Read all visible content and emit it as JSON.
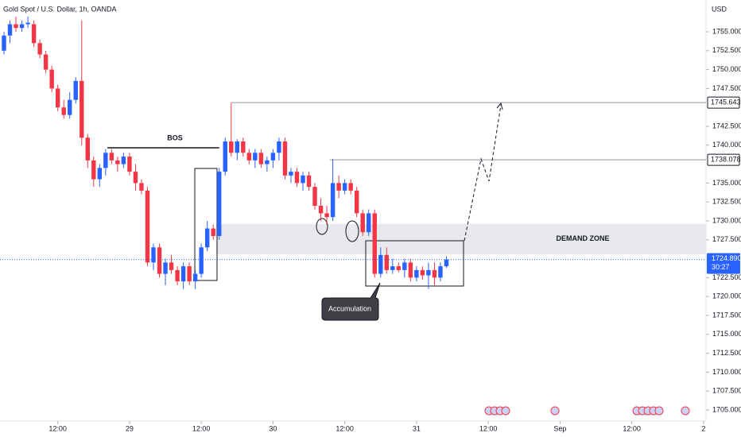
{
  "chart_data": {
    "type": "candlestick",
    "title": "Gold Spot / U.S. Dollar, 1h, OANDA",
    "currency": "USD",
    "up_color": "#2962ff",
    "down_color": "#f23645",
    "open": [
      1752.5,
      1754.5,
      1756,
      1755.5,
      1756,
      1756,
      1753.5,
      1752,
      1750,
      1747.5,
      1745,
      1744,
      1746,
      1748.5,
      1741,
      1738,
      1735.5,
      1737,
      1739,
      1738,
      1737.5,
      1738.5,
      1736.5,
      1735,
      1734,
      1724.5,
      1726.5,
      1723,
      1724.5,
      1723.5,
      1722,
      1724,
      1722,
      1723,
      1726.5,
      1729,
      1728,
      1736.5,
      1740.5,
      1739,
      1740.5,
      1739,
      1738,
      1739,
      1737.5,
      1738,
      1739,
      1740.5,
      1736,
      1736.5,
      1735,
      1736,
      1734.5,
      1732,
      1731,
      1730.5,
      1735,
      1734,
      1735,
      1734,
      1731,
      1728.5,
      1731,
      1723,
      1725.5,
      1723.5,
      1724,
      1723.5,
      1724.5,
      1722.5,
      1723.5,
      1722.8,
      1723.5,
      1722.5,
      1724
    ],
    "high": [
      1755,
      1756.5,
      1757,
      1756.5,
      1757,
      1756.5,
      1754,
      1752.5,
      1750.5,
      1748,
      1746,
      1747,
      1749,
      1756.5,
      1741.5,
      1738.5,
      1737.5,
      1739.5,
      1739.5,
      1738.5,
      1739,
      1739,
      1737.5,
      1735.5,
      1734.5,
      1727,
      1727,
      1725,
      1725.5,
      1724,
      1724.5,
      1724.5,
      1723.5,
      1727,
      1730,
      1729.5,
      1737,
      1741,
      1745.6,
      1740.8,
      1741,
      1739.5,
      1739.5,
      1739.5,
      1738.5,
      1739.5,
      1741,
      1741,
      1737,
      1737,
      1736.5,
      1736.5,
      1735,
      1733,
      1732,
      1738.2,
      1736,
      1735.5,
      1735.5,
      1734.5,
      1731.5,
      1731.5,
      1731.5,
      1726.5,
      1726.5,
      1725,
      1724.5,
      1725,
      1725,
      1724,
      1724,
      1724.5,
      1724.5,
      1724.5,
      1725.3
    ],
    "low": [
      1752,
      1753.5,
      1755,
      1755,
      1755.5,
      1753,
      1751.5,
      1749.5,
      1747,
      1744.5,
      1743.5,
      1743.5,
      1745.5,
      1740,
      1737,
      1734.5,
      1734.5,
      1736,
      1737.5,
      1736.5,
      1737,
      1736,
      1734,
      1733.5,
      1724,
      1723.5,
      1722.5,
      1721.5,
      1723,
      1721.5,
      1721,
      1721.5,
      1721,
      1722.5,
      1726,
      1727.5,
      1727.5,
      1736,
      1738.5,
      1738,
      1738.5,
      1737.5,
      1737,
      1737,
      1736.5,
      1737,
      1738,
      1735.5,
      1735,
      1734.5,
      1734,
      1734,
      1731.5,
      1730,
      1729.5,
      1730,
      1733,
      1733.5,
      1733.5,
      1730.5,
      1728,
      1728,
      1722.5,
      1722.5,
      1723,
      1723,
      1723.2,
      1722.5,
      1722,
      1722,
      1722.2,
      1721,
      1721.5,
      1722,
      1723.8
    ],
    "close": [
      1754.5,
      1756,
      1755.5,
      1756,
      1756.2,
      1753.5,
      1752,
      1750,
      1747.5,
      1745,
      1744,
      1746,
      1748.5,
      1741,
      1738,
      1735.5,
      1737,
      1739,
      1738,
      1737.5,
      1738.5,
      1736.5,
      1735,
      1734,
      1724.5,
      1726.5,
      1723,
      1724.5,
      1723.5,
      1722,
      1724,
      1722,
      1723,
      1726.5,
      1729,
      1728,
      1736.5,
      1740.5,
      1739,
      1740.5,
      1739,
      1738,
      1739,
      1737.5,
      1738,
      1739,
      1740.5,
      1736,
      1736.5,
      1735,
      1736,
      1734.5,
      1732,
      1731,
      1730.5,
      1735,
      1734,
      1735,
      1734,
      1731,
      1728.5,
      1731,
      1723,
      1725.5,
      1723.5,
      1724,
      1723.5,
      1724.5,
      1722.5,
      1723.5,
      1722.8,
      1723.5,
      1722.5,
      1724,
      1724.9
    ],
    "xlim": [
      -0.665,
      117.42
    ],
    "xticks": [
      {
        "value": 9,
        "label": "12:00"
      },
      {
        "value": 21,
        "label": "29"
      },
      {
        "value": 33,
        "label": "12:00"
      },
      {
        "value": 45,
        "label": "30"
      },
      {
        "value": 57,
        "label": "12:00"
      },
      {
        "value": 69,
        "label": "31"
      },
      {
        "value": 81,
        "label": "12:00"
      },
      {
        "value": 93,
        "label": "Sep"
      },
      {
        "value": 105,
        "label": "12:00"
      },
      {
        "value": 117,
        "label": "2"
      }
    ],
    "ylim": [
      1703.53,
      1759.2
    ],
    "yticks": [
      {
        "value": 1705,
        "label": "1705.000"
      },
      {
        "value": 1707.5,
        "label": "1707.500"
      },
      {
        "value": 1710,
        "label": "1710.000"
      },
      {
        "value": 1712.5,
        "label": "1712.500"
      },
      {
        "value": 1715,
        "label": "1715.000"
      },
      {
        "value": 1717.5,
        "label": "1717.500"
      },
      {
        "value": 1720,
        "label": "1720.000"
      },
      {
        "value": 1722.5,
        "label": "1722.500"
      },
      {
        "value": 1727.5,
        "label": "1727.500"
      },
      {
        "value": 1730,
        "label": "1730.000"
      },
      {
        "value": 1732.5,
        "label": "1732.500"
      },
      {
        "value": 1735,
        "label": "1735.000"
      },
      {
        "value": 1740,
        "label": "1740.000"
      },
      {
        "value": 1742.5,
        "label": "1742.500"
      },
      {
        "value": 1747.5,
        "label": "1747.500"
      },
      {
        "value": 1750,
        "label": "1750.000"
      },
      {
        "value": 1752.5,
        "label": "1752.500"
      },
      {
        "value": 1755,
        "label": "1755.000"
      }
    ],
    "price_lines": [
      {
        "value": 1745.643,
        "color": "#9598a1"
      },
      {
        "value": 1738.078,
        "color": "#9598a1"
      }
    ],
    "current_price": {
      "value": 1724.89,
      "label": "1724.890",
      "countdown": "30:27",
      "color": "#2962ff"
    },
    "bos": {
      "label": "BOS",
      "value": 1739.66
    },
    "demand_zone": {
      "label": "DEMAND ZONE",
      "low": 1725.6,
      "high": 1729.6,
      "color": "#e8e9ec"
    },
    "callout": "Accumulation"
  }
}
